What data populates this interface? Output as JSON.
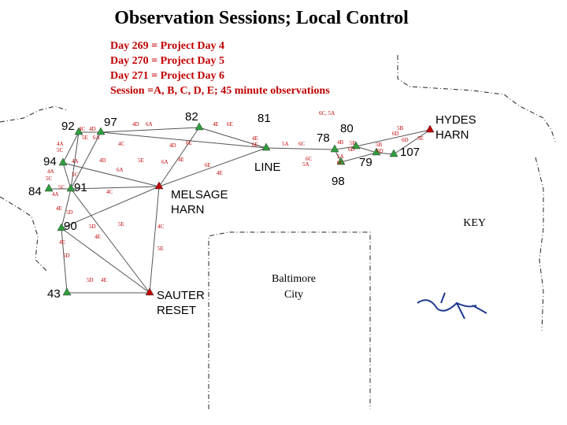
{
  "header": {
    "title": "Observation Sessions; Local Control",
    "lines": [
      "Day 269 = Project Day 4",
      "Day 270 = Project Day 5",
      "Day 271 = Project Day 6",
      "Session =A, B, C, D, E; 45 minute observations"
    ]
  },
  "stations": [
    {
      "label": [
        "92"
      ]
    },
    {
      "label": [
        "97"
      ]
    },
    {
      "label": [
        "82"
      ]
    },
    {
      "label": [
        "81"
      ]
    },
    {
      "label": [
        "LINE"
      ]
    },
    {
      "label": [
        "78"
      ]
    },
    {
      "label": [
        "80"
      ]
    },
    {
      "label": [
        "98"
      ]
    },
    {
      "label": [
        "79"
      ]
    },
    {
      "label": [
        "107"
      ]
    },
    {
      "label": [
        "HYDES",
        "HARN"
      ]
    },
    {
      "label": [
        "94"
      ]
    },
    {
      "label": [
        "84"
      ]
    },
    {
      "label": [
        "91"
      ]
    },
    {
      "label": [
        "90"
      ]
    },
    {
      "label": [
        "43"
      ]
    },
    {
      "label": [
        "SAUTER",
        "RESET"
      ]
    },
    {
      "label": [
        "MELSAGE",
        "HARN"
      ]
    }
  ],
  "session_labels": [
    "4C",
    "4D",
    "5E",
    "6A",
    "4D",
    "6A",
    "4E",
    "6E",
    "4A",
    "5C",
    "4A",
    "4C",
    "4D",
    "4D",
    "6E",
    "5E",
    "6A",
    "4E",
    "6E",
    "4E",
    "4A",
    "5C",
    "5C",
    "6A",
    "5C",
    "4A",
    "4C",
    "4E",
    "5D",
    "5D",
    "5E",
    "4C",
    "4E",
    "4E",
    "5E",
    "5D",
    "5D",
    "4E",
    "6C, 5A",
    "4E",
    "6E",
    "5A",
    "6C",
    "6C",
    "5A",
    "5A",
    "6C",
    "5E",
    "6D",
    "6D",
    "5B",
    "6D",
    "5E",
    "5B",
    "6D",
    "4B"
  ],
  "key": "KEY",
  "city": [
    "Baltimore",
    "City"
  ]
}
